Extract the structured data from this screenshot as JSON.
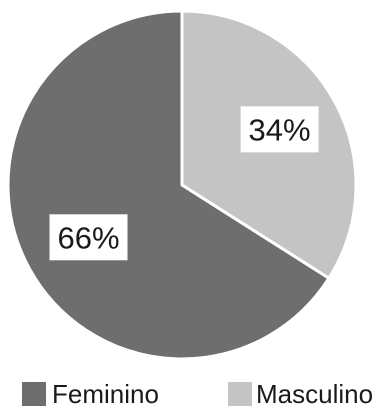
{
  "chart_data": {
    "type": "pie",
    "slices": [
      {
        "label": "Masculino",
        "value": 34,
        "display": "34%",
        "color": "#c4c4c4"
      },
      {
        "label": "Feminino",
        "value": 66,
        "display": "66%",
        "color": "#6e6e6e"
      }
    ],
    "legend": {
      "position": "bottom",
      "entries": [
        {
          "label": "Feminino",
          "color": "#6e6e6e"
        },
        {
          "label": "Masculino",
          "color": "#c4c4c4"
        }
      ]
    }
  }
}
